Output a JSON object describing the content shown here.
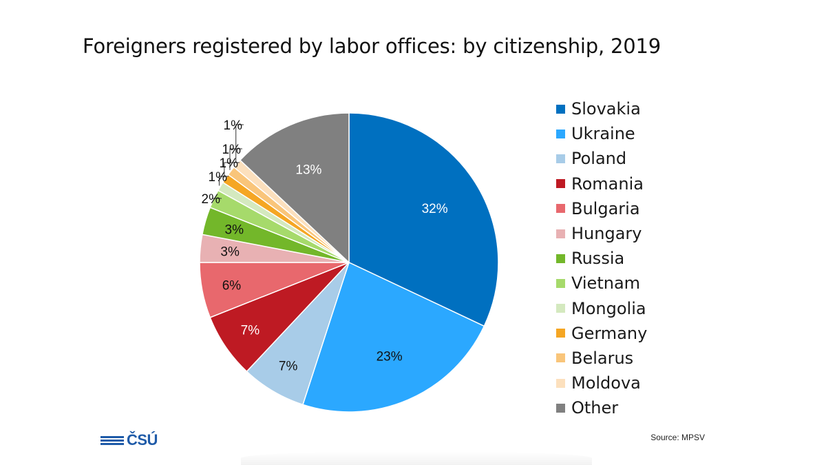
{
  "chart_data": {
    "type": "pie",
    "title": "Foreigners registered by labor offices: by citizenship, 2019",
    "slices": [
      {
        "name": "Slovakia",
        "value": 32,
        "label": "32%",
        "color": "#0070c0",
        "label_color": "#ffffff",
        "label_placement": "inside"
      },
      {
        "name": "Ukraine",
        "value": 23,
        "label": "23%",
        "color": "#2ba8ff",
        "label_color": "#111111",
        "label_placement": "inside"
      },
      {
        "name": "Poland",
        "value": 7,
        "label": "7%",
        "color": "#a8cce8",
        "label_color": "#111111",
        "label_placement": "inside"
      },
      {
        "name": "Romania",
        "value": 7,
        "label": "7%",
        "color": "#be1a23",
        "label_color": "#ffffff",
        "label_placement": "inside"
      },
      {
        "name": "Bulgaria",
        "value": 6,
        "label": "6%",
        "color": "#e8686d",
        "label_color": "#111111",
        "label_placement": "inside"
      },
      {
        "name": "Hungary",
        "value": 3,
        "label": "3%",
        "color": "#e8b1b3",
        "label_color": "#111111",
        "label_placement": "inside"
      },
      {
        "name": "Russia",
        "value": 3,
        "label": "3%",
        "color": "#73b72a",
        "label_color": "#111111",
        "label_placement": "inside"
      },
      {
        "name": "Vietnam",
        "value": 2,
        "label": "2%",
        "color": "#a6da6b",
        "label_color": "#111111",
        "label_placement": "outside"
      },
      {
        "name": "Mongolia",
        "value": 1,
        "label": "1%",
        "color": "#d4e9bf",
        "label_color": "#111111",
        "label_placement": "outside"
      },
      {
        "name": "Germany",
        "value": 1,
        "label": "1%",
        "color": "#f5a623",
        "label_color": "#111111",
        "label_placement": "outside"
      },
      {
        "name": "Belarus",
        "value": 1,
        "label": "1%",
        "color": "#f9c57a",
        "label_color": "#111111",
        "label_placement": "outside"
      },
      {
        "name": "Moldova",
        "value": 1,
        "label": "1%",
        "color": "#fce0bd",
        "label_color": "#111111",
        "label_placement": "outside"
      },
      {
        "name": "Other",
        "value": 13,
        "label": "13%",
        "color": "#808080",
        "label_color": "#ffffff",
        "label_placement": "inside"
      }
    ],
    "start_position": "top",
    "direction": "clockwise",
    "legend_position": "right"
  },
  "footer": {
    "source": "Source: MPSV",
    "logo_text": "ČSÚ",
    "logo_color": "#1f5ba8"
  }
}
